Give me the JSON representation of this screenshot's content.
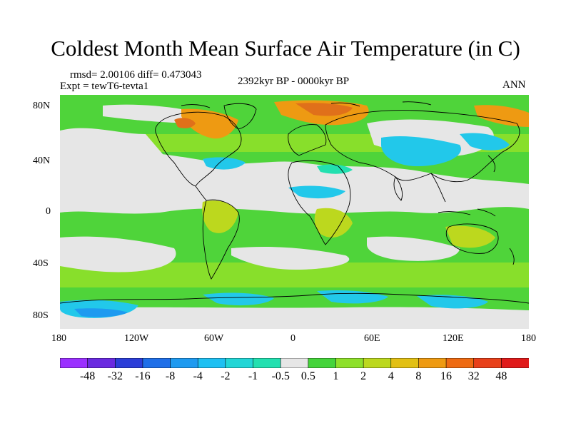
{
  "title": "Coldest Month Mean Surface Air Temperature (in C)",
  "stats_line": "rmsd= 2.00106 diff= 0.473043",
  "experiment_line": "Expt = tewT6-tevta1",
  "period_line": "2392kyr BP - 0000kyr BP",
  "season": "ANN",
  "y_ticks": [
    "80N",
    "40N",
    "0",
    "40S",
    "80S"
  ],
  "x_ticks": [
    "180",
    "120W",
    "60W",
    "0",
    "60E",
    "120E",
    "180"
  ],
  "legend": {
    "labels": [
      "-48",
      "-32",
      "-16",
      "-8",
      "-4",
      "-2",
      "-1",
      "-0.5",
      "0.5",
      "1",
      "2",
      "4",
      "8",
      "16",
      "32",
      "48"
    ],
    "colors": [
      "#9b30ff",
      "#6a2ae0",
      "#2c3ed8",
      "#1f6fe8",
      "#1e9af0",
      "#1ec0f2",
      "#22d6d6",
      "#22e0b0",
      "#e6e6e6",
      "#44d43a",
      "#8ee02a",
      "#bcd81e",
      "#e2c014",
      "#ee9a12",
      "#ee6a12",
      "#e8401a",
      "#e01a1a"
    ]
  },
  "map_colors": {
    "neutral": "#e6e6e6",
    "green": "#4fd43a",
    "lightgreen": "#8ee02a",
    "yellowgreen": "#bcd81e",
    "orange": "#ee9a12",
    "darkorange": "#e0701a",
    "cyan": "#22c8ea",
    "teal": "#22e0b0",
    "blue": "#1e9af0",
    "coast": "#000000"
  }
}
